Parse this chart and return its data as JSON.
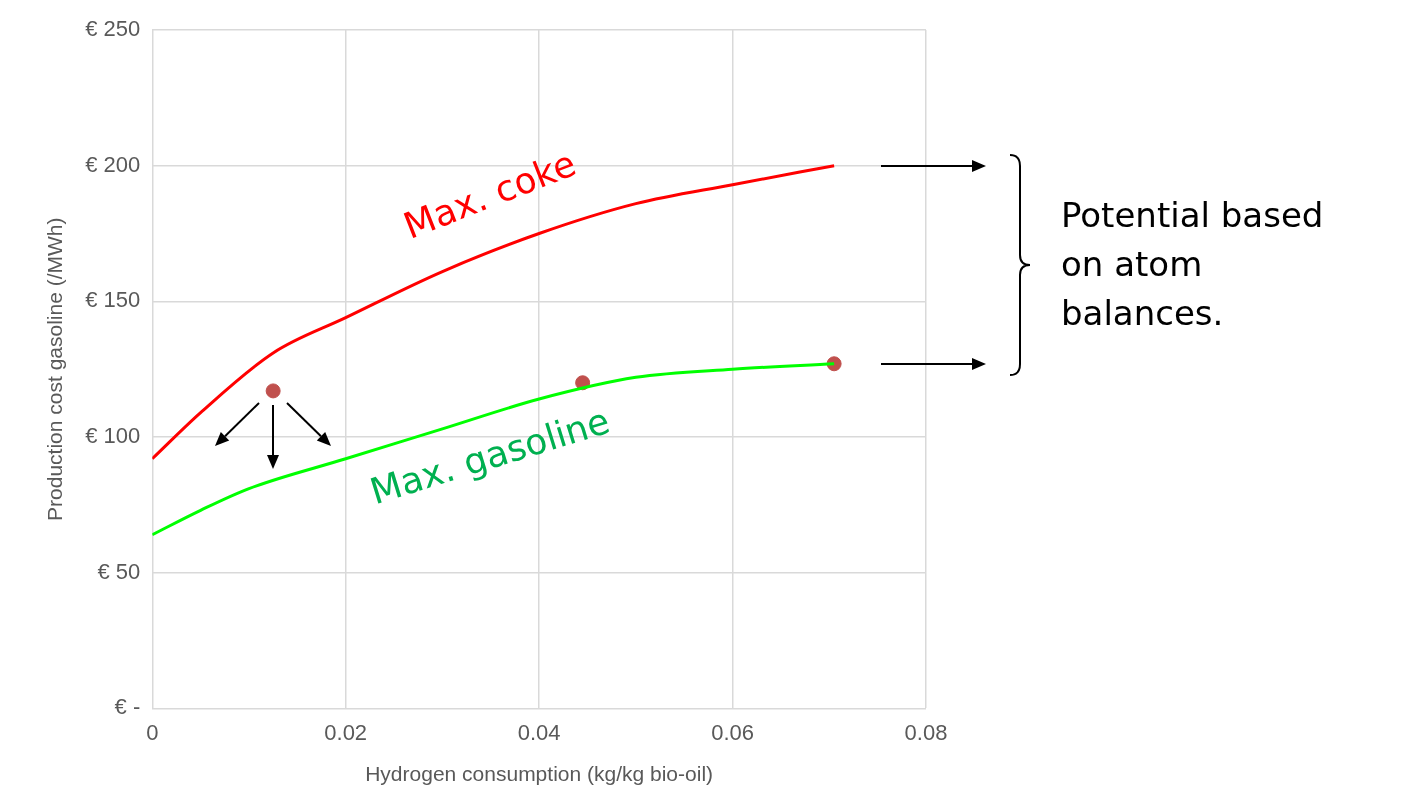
{
  "chart_data": {
    "type": "line",
    "xlabel": "Hydrogen consumption (kg/kg bio-oil)",
    "ylabel": "Production cost gasoline (/MWh)",
    "xlim": [
      0,
      0.08
    ],
    "xticks": [
      0,
      0.02,
      0.04,
      0.06,
      0.08
    ],
    "ylim": [
      0,
      250
    ],
    "yticks": [
      {
        "value": 0,
        "label": "€ -"
      },
      {
        "value": 50,
        "label": "€ 50"
      },
      {
        "value": 100,
        "label": "€ 100"
      },
      {
        "value": 150,
        "label": "€ 150"
      },
      {
        "value": 200,
        "label": "€ 200"
      },
      {
        "value": 250,
        "label": "€ 250"
      }
    ],
    "grid": true,
    "legend": false,
    "marker": "none",
    "line_style": "solid",
    "series": [
      {
        "name": "Max. coke",
        "color": "#ff0000",
        "x": [
          0,
          0.005,
          0.0125,
          0.02,
          0.03,
          0.04,
          0.05,
          0.06,
          0.0705
        ],
        "values": [
          92,
          109,
          131,
          144,
          161,
          175,
          186,
          193,
          200
        ]
      },
      {
        "name": "Max. gasoline",
        "color": "#00ff00",
        "x": [
          0,
          0.005,
          0.01,
          0.02,
          0.03,
          0.04,
          0.05,
          0.06,
          0.0705
        ],
        "values": [
          64,
          73,
          81,
          92,
          103,
          114,
          122,
          125,
          127
        ]
      },
      {
        "type": "scatter",
        "color": "#c0504d",
        "marker": "circle",
        "x": [
          0.0125,
          0.0445,
          0.0705
        ],
        "values": [
          117,
          120,
          127
        ]
      }
    ],
    "annotations": [
      "Potential based on atom balances."
    ]
  }
}
